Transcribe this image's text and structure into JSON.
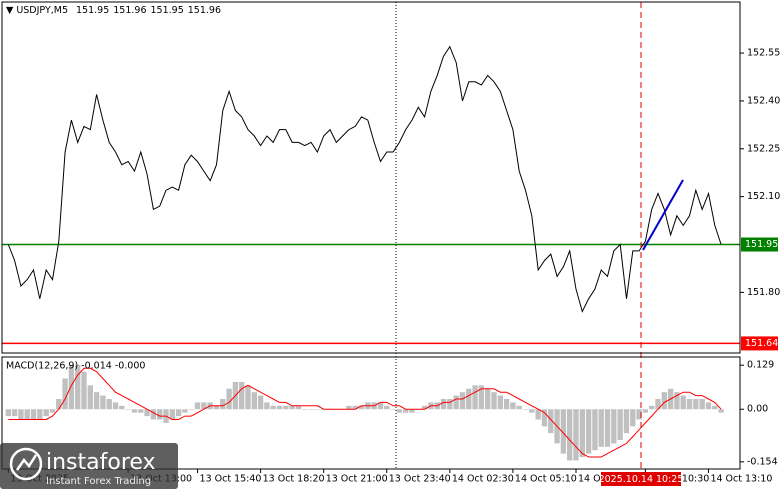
{
  "chart_data": [
    {
      "type": "line",
      "title": "USDJPY,M5",
      "ohlc": [
        151.95,
        151.96,
        151.95,
        151.96
      ],
      "color": "#000000",
      "values": [
        151.95,
        151.9,
        151.82,
        151.84,
        151.87,
        151.78,
        151.87,
        151.84,
        151.96,
        152.24,
        152.34,
        152.27,
        152.32,
        152.31,
        152.42,
        152.34,
        152.27,
        152.24,
        152.2,
        152.21,
        152.18,
        152.24,
        152.17,
        152.06,
        152.07,
        152.12,
        152.13,
        152.12,
        152.2,
        152.23,
        152.21,
        152.18,
        152.15,
        152.2,
        152.37,
        152.43,
        152.37,
        152.35,
        152.31,
        152.29,
        152.26,
        152.29,
        152.27,
        152.31,
        152.31,
        152.27,
        152.27,
        152.26,
        152.27,
        152.24,
        152.29,
        152.31,
        152.27,
        152.29,
        152.31,
        152.32,
        152.35,
        152.34,
        152.27,
        152.21,
        152.24,
        152.24,
        152.27,
        152.31,
        152.34,
        152.38,
        152.35,
        152.43,
        152.48,
        152.54,
        152.57,
        152.52,
        152.4,
        152.46,
        152.46,
        152.45,
        152.48,
        152.46,
        152.43,
        152.37,
        152.31,
        152.18,
        152.12,
        152.04,
        151.87,
        151.9,
        151.92,
        151.85,
        151.88,
        151.93,
        151.81,
        151.74,
        151.78,
        151.81,
        151.87,
        151.85,
        151.93,
        151.95,
        151.78,
        151.93,
        151.93,
        151.96,
        152.06,
        152.11,
        152.06,
        151.98,
        152.04,
        152.01,
        152.04,
        152.12,
        152.06,
        152.11,
        152.01,
        151.95
      ],
      "xlim": [
        -1,
        116
      ],
      "xticks": [
        {
          "value": 0,
          "label": "13 Oct 2025"
        },
        {
          "value": 19,
          "label": "13 Oct 13:00"
        },
        {
          "value": 30,
          "label": "13 Oct 15:40"
        },
        {
          "value": 40,
          "label": "13 Oct 18:20"
        },
        {
          "value": 50,
          "label": "13 Oct 21:00"
        },
        {
          "value": 60,
          "label": "13 Oct 23:40"
        },
        {
          "value": 70,
          "label": "14 Oct 02:30"
        },
        {
          "value": 80,
          "label": "14 Oct 05:10"
        },
        {
          "value": 90,
          "label": "14 Oct 07:50"
        },
        {
          "value": 101,
          "label": "14 Oct 10:30"
        },
        {
          "value": 111,
          "label": "14 Oct 13:10"
        }
      ],
      "ylim": [
        151.61,
        152.71
      ],
      "yticks": [
        152.55,
        {
          "value": 152.4,
          "label": "152.40"
        },
        152.25,
        {
          "value": 152.1,
          "label": "152.10"
        },
        {
          "value": 151.8,
          "label": "151.80"
        }
      ],
      "hlines": [
        {
          "value": 151.95,
          "color": "#008000"
        },
        {
          "value": 151.64,
          "color": "#ff0000"
        }
      ],
      "crosshair_label": "2025.10.14 10:25"
    },
    {
      "type": "macd",
      "label": "MACD(12,26,9) -0.014 -0.000",
      "xlim": [
        -1,
        116
      ],
      "ylim": [
        -0.175,
        0.153
      ],
      "yticks": [
        0.129,
        {
          "value": 0,
          "label": "0.00"
        },
        -0.154
      ],
      "histogram": {
        "color": "#c0c0c0",
        "values": [
          -0.02,
          -0.02,
          -0.03,
          -0.03,
          -0.03,
          -0.03,
          -0.02,
          -0.01,
          0.03,
          0.09,
          0.13,
          0.13,
          0.11,
          0.07,
          0.05,
          0.04,
          0.03,
          0.02,
          0.01,
          0.0,
          -0.01,
          -0.01,
          -0.02,
          -0.03,
          -0.03,
          -0.04,
          -0.03,
          -0.02,
          -0.01,
          0.0,
          0.02,
          0.02,
          0.02,
          0.01,
          0.03,
          0.06,
          0.08,
          0.08,
          0.07,
          0.05,
          0.04,
          0.02,
          0.01,
          0.01,
          0.01,
          0.01,
          0.01,
          0.0,
          0.0,
          0.0,
          0.0,
          0.0,
          0.0,
          0.0,
          0.01,
          0.01,
          0.01,
          0.02,
          0.02,
          0.02,
          0.01,
          0.0,
          -0.01,
          -0.01,
          -0.01,
          0.0,
          0.01,
          0.02,
          0.02,
          0.03,
          0.03,
          0.04,
          0.05,
          0.06,
          0.07,
          0.07,
          0.06,
          0.05,
          0.04,
          0.03,
          0.02,
          0.01,
          0.0,
          -0.01,
          -0.03,
          -0.05,
          -0.07,
          -0.1,
          -0.13,
          -0.15,
          -0.15,
          -0.14,
          -0.13,
          -0.12,
          -0.11,
          -0.11,
          -0.1,
          -0.09,
          -0.07,
          -0.05,
          -0.03,
          -0.01,
          0.01,
          0.03,
          0.05,
          0.06,
          0.05,
          0.04,
          0.03,
          0.03,
          0.03,
          0.02,
          0.01,
          -0.01
        ]
      },
      "signal": {
        "color": "#ff0000",
        "values": [
          -0.03,
          -0.03,
          -0.03,
          -0.03,
          -0.03,
          -0.03,
          -0.03,
          -0.02,
          0.0,
          0.03,
          0.07,
          0.1,
          0.12,
          0.12,
          0.11,
          0.09,
          0.07,
          0.05,
          0.04,
          0.03,
          0.02,
          0.01,
          0.0,
          -0.01,
          -0.02,
          -0.02,
          -0.03,
          -0.03,
          -0.02,
          -0.02,
          -0.01,
          0.0,
          0.01,
          0.01,
          0.01,
          0.02,
          0.04,
          0.06,
          0.07,
          0.06,
          0.05,
          0.04,
          0.03,
          0.02,
          0.02,
          0.01,
          0.01,
          0.01,
          0.01,
          0.01,
          0.0,
          0.0,
          0.0,
          0.0,
          0.0,
          0.0,
          0.01,
          0.01,
          0.01,
          0.02,
          0.02,
          0.01,
          0.01,
          0.0,
          0.0,
          0.0,
          0.0,
          0.01,
          0.01,
          0.02,
          0.02,
          0.03,
          0.03,
          0.04,
          0.05,
          0.06,
          0.06,
          0.06,
          0.05,
          0.05,
          0.04,
          0.03,
          0.02,
          0.01,
          0.0,
          -0.01,
          -0.03,
          -0.05,
          -0.07,
          -0.09,
          -0.11,
          -0.13,
          -0.14,
          -0.14,
          -0.14,
          -0.13,
          -0.12,
          -0.11,
          -0.1,
          -0.08,
          -0.06,
          -0.04,
          -0.02,
          0.0,
          0.02,
          0.03,
          0.04,
          0.05,
          0.05,
          0.04,
          0.04,
          0.03,
          0.02,
          0.0
        ]
      }
    }
  ],
  "watermark": {
    "brand": "instaforex",
    "tagline": "Instant Forex Trading"
  }
}
